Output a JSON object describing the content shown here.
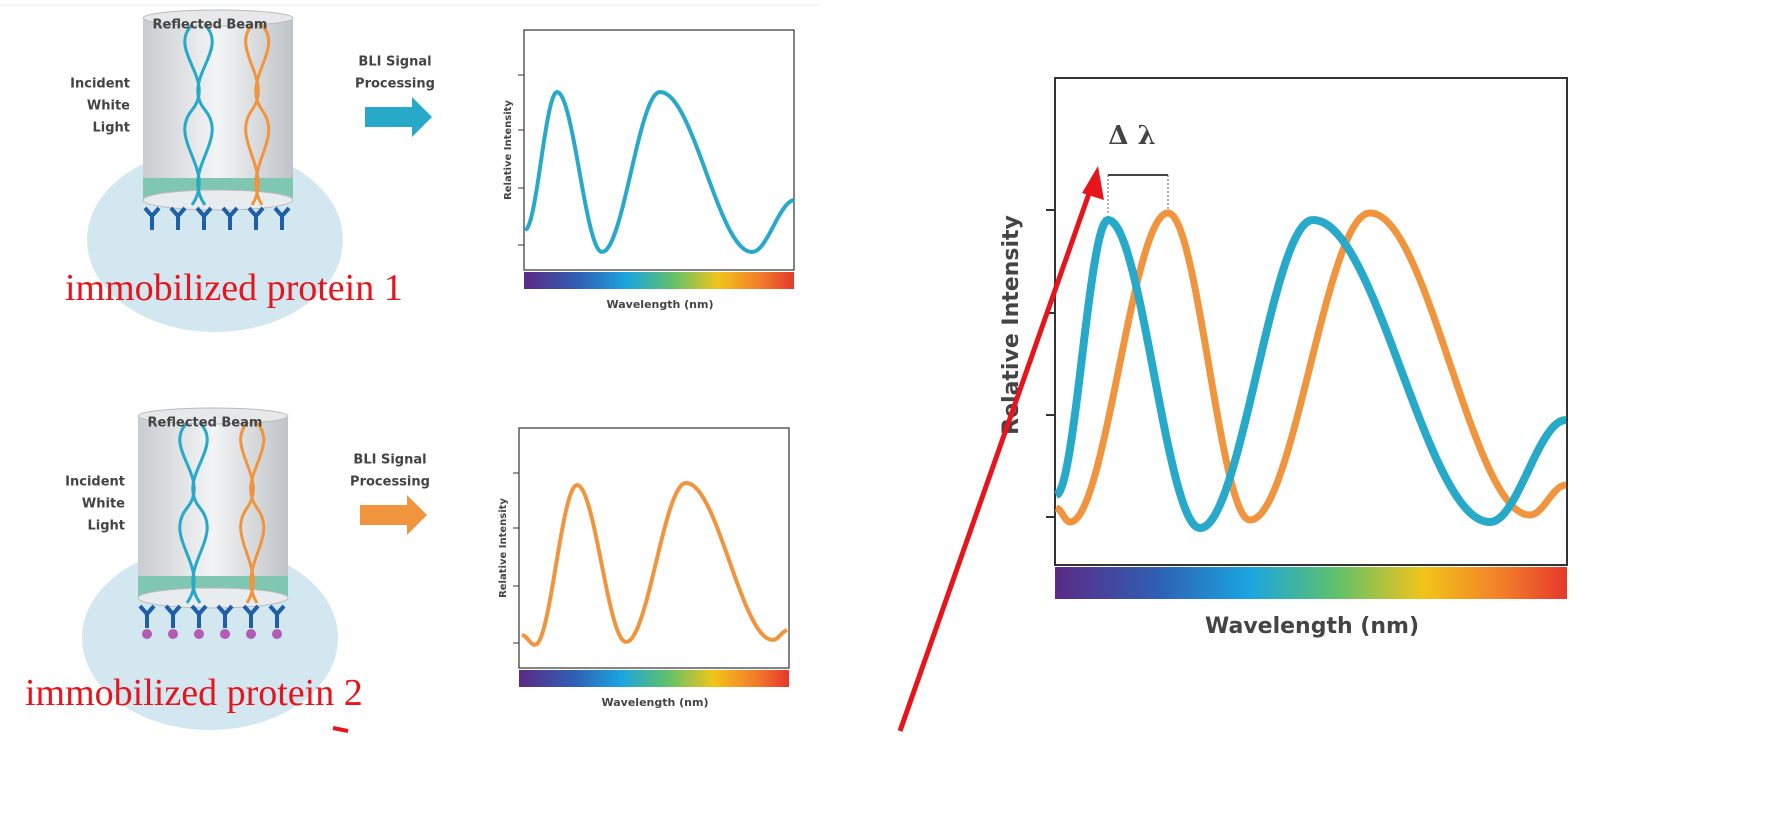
{
  "panels": [
    {
      "reflected_beam": "Reflected Beam",
      "incident": [
        "Incident",
        "White",
        "Light"
      ],
      "processing": [
        "BLI Signal",
        "Processing"
      ],
      "y_label": "Relative Intensity",
      "x_label": "Wavelength (nm)",
      "caption": "immobilized protein 1"
    },
    {
      "reflected_beam": "Reflected Beam",
      "incident": [
        "Incident",
        "White",
        "Light"
      ],
      "processing": [
        "BLI Signal",
        "Processing"
      ],
      "y_label": "Relative Intensity",
      "x_label": "Wavelength (nm)",
      "caption": "immobilized protein 2"
    }
  ],
  "comparison": {
    "delta": "Δ λ",
    "y_label": "Relative Intensity",
    "x_label": "Wavelength (nm)"
  }
}
